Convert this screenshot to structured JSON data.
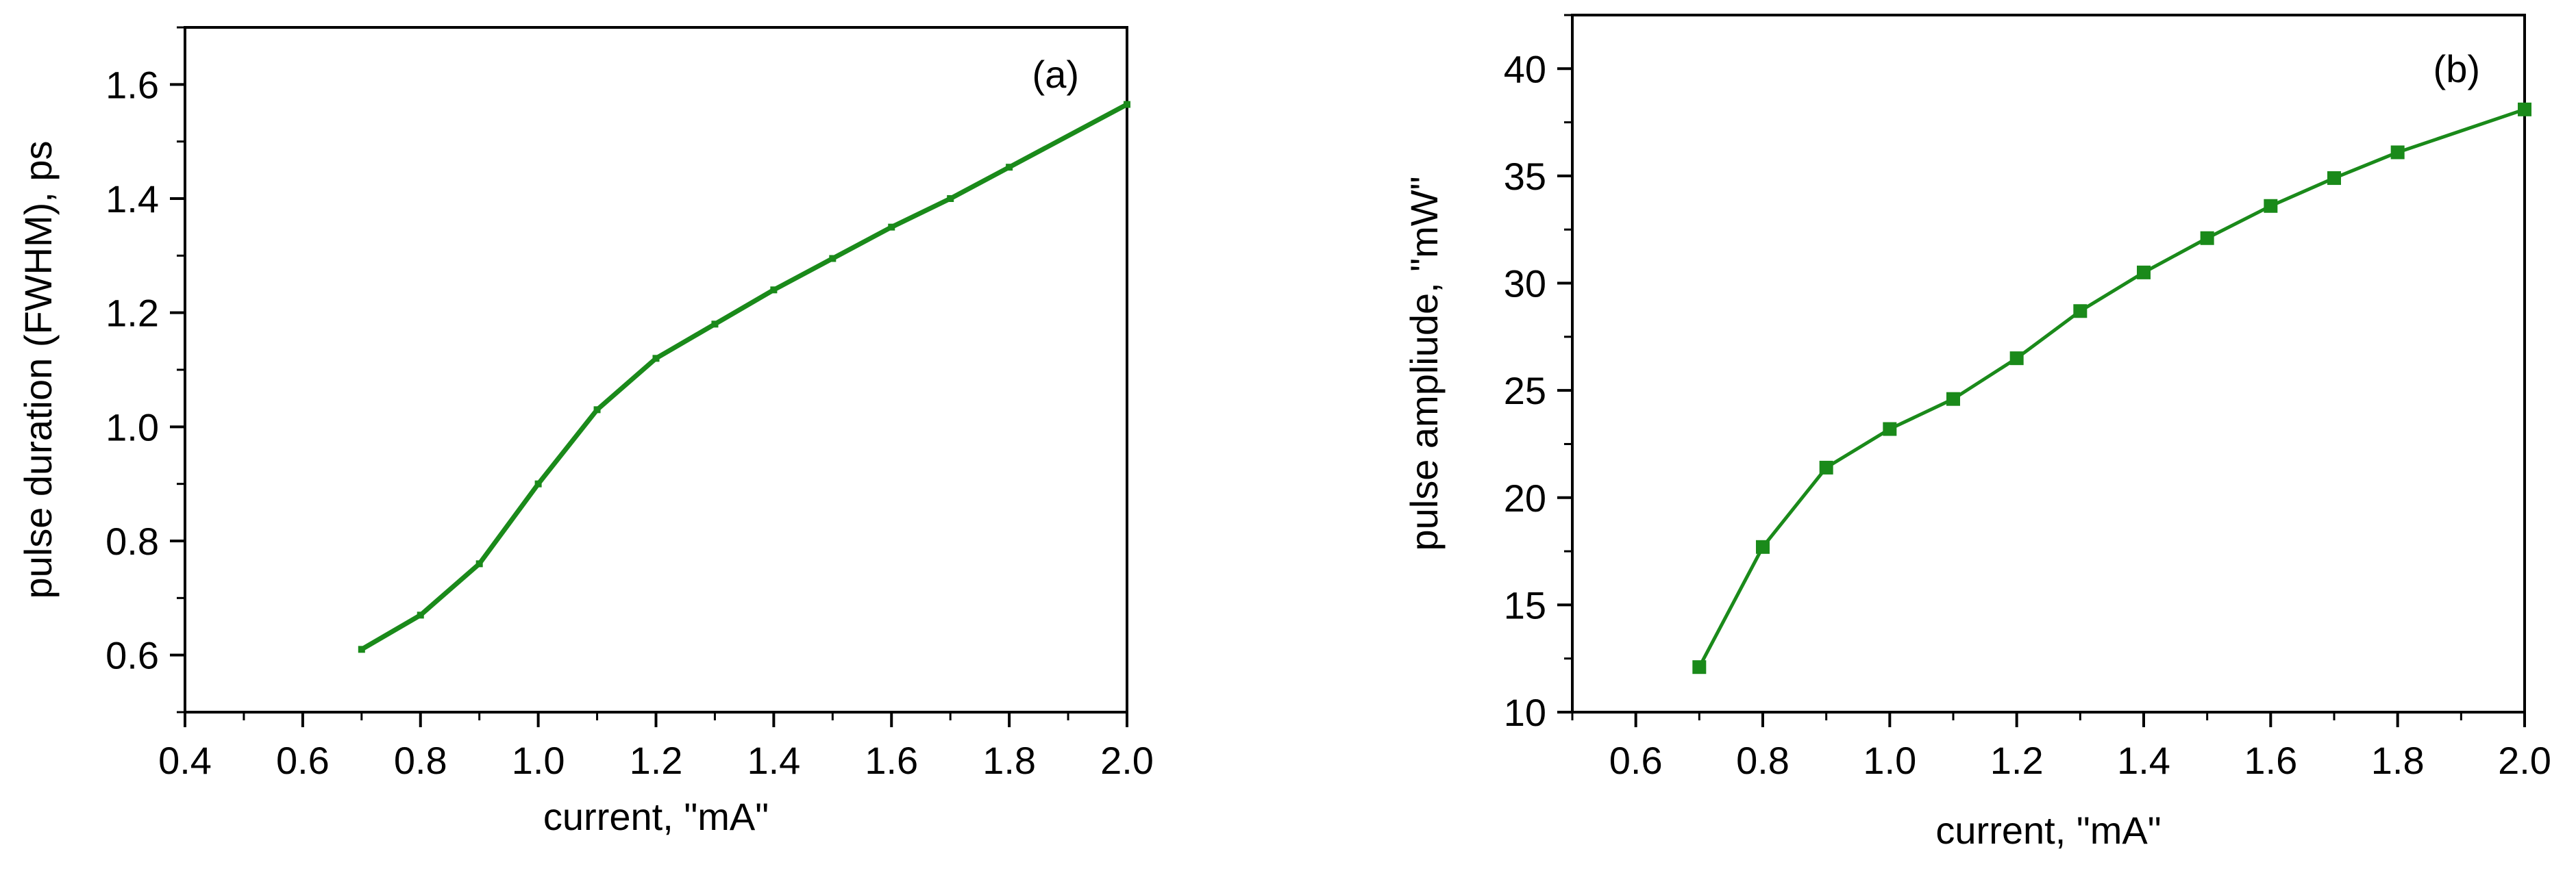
{
  "chart_data": [
    {
      "type": "line",
      "panel_label": "(a)",
      "xlabel": "current, \"mA\"",
      "ylabel": "pulse duration (FWHM), ps",
      "xlim": [
        0.4,
        2.0
      ],
      "ylim": [
        0.5,
        1.7
      ],
      "x_ticks": [
        "0.4",
        "0.6",
        "0.8",
        "1.0",
        "1.2",
        "1.4",
        "1.6",
        "1.8",
        "2.0"
      ],
      "y_ticks": [
        "0.6",
        "0.8",
        "1.0",
        "1.2",
        "1.4",
        "1.6"
      ],
      "grid": false,
      "series": [
        {
          "color": "#1a8a1a",
          "marker": "small-square",
          "x": [
            0.7,
            0.8,
            0.9,
            1.0,
            1.1,
            1.2,
            1.3,
            1.4,
            1.5,
            1.6,
            1.7,
            1.8,
            2.0
          ],
          "y": [
            0.61,
            0.67,
            0.76,
            0.9,
            1.03,
            1.12,
            1.18,
            1.24,
            1.295,
            1.35,
            1.4,
            1.455,
            1.565
          ]
        }
      ]
    },
    {
      "type": "line",
      "panel_label": "(b)",
      "xlabel": "current, \"mA\"",
      "ylabel": "pulse ampliude, \"mW\"",
      "xlim": [
        0.5,
        2.0
      ],
      "ylim": [
        10,
        42.5
      ],
      "x_ticks": [
        "0.6",
        "0.8",
        "1.0",
        "1.2",
        "1.4",
        "1.6",
        "1.8",
        "2.0"
      ],
      "y_ticks": [
        "10",
        "15",
        "20",
        "25",
        "30",
        "35",
        "40"
      ],
      "grid": false,
      "series": [
        {
          "color": "#1a8a1a",
          "marker": "square",
          "x": [
            0.7,
            0.8,
            0.9,
            1.0,
            1.1,
            1.2,
            1.3,
            1.4,
            1.5,
            1.6,
            1.7,
            1.8,
            2.0
          ],
          "y": [
            12.1,
            17.7,
            21.4,
            23.2,
            24.6,
            26.5,
            28.7,
            30.5,
            32.1,
            33.6,
            34.9,
            36.1,
            38.1
          ]
        }
      ]
    }
  ]
}
